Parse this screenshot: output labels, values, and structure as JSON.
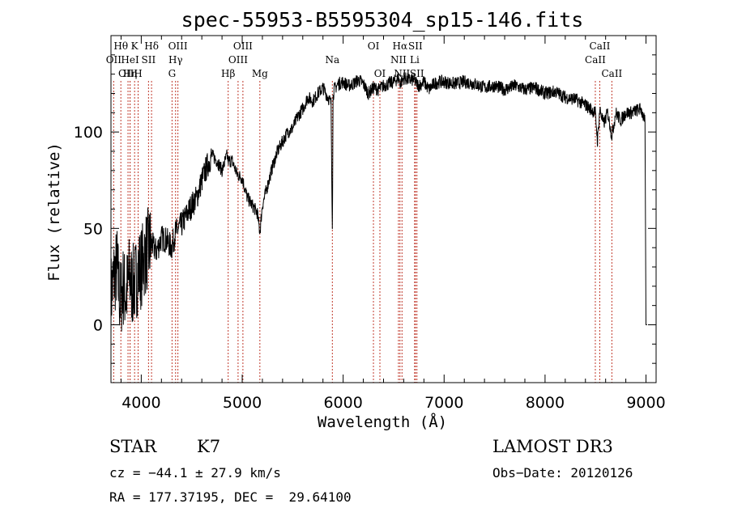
{
  "chart_data": {
    "type": "line",
    "title": "spec-55953-B5595304_sp15-146.fits",
    "xlabel": "Wavelength (Å)",
    "ylabel": "Flux (relative)",
    "xlim": [
      3700,
      9100
    ],
    "ylim": [
      -30,
      150
    ],
    "xticks": [
      {
        "value": 4000,
        "label": "4000"
      },
      {
        "value": 5000,
        "label": "5000"
      },
      {
        "value": 6000,
        "label": "6000"
      },
      {
        "value": 7000,
        "label": "7000"
      },
      {
        "value": 8000,
        "label": "8000"
      },
      {
        "value": 9000,
        "label": "9000"
      }
    ],
    "yticks": [
      {
        "value": 0,
        "label": "0"
      },
      {
        "value": 50,
        "label": "50"
      },
      {
        "value": 100,
        "label": "100"
      }
    ],
    "series": [
      {
        "name": "flux",
        "x": [
          3700,
          3730,
          3760,
          3790,
          3820,
          3850,
          3880,
          3910,
          3940,
          3970,
          4000,
          4050,
          4100,
          4150,
          4200,
          4250,
          4300,
          4340,
          4400,
          4450,
          4500,
          4550,
          4600,
          4650,
          4700,
          4750,
          4800,
          4850,
          4861,
          4900,
          4950,
          5000,
          5050,
          5100,
          5150,
          5175,
          5200,
          5250,
          5300,
          5350,
          5400,
          5450,
          5500,
          5550,
          5600,
          5650,
          5700,
          5750,
          5800,
          5850,
          5880,
          5893,
          5900,
          5910,
          5950,
          6000,
          6050,
          6100,
          6150,
          6200,
          6250,
          6300,
          6350,
          6400,
          6450,
          6500,
          6550,
          6563,
          6600,
          6650,
          6700,
          6750,
          6800,
          6850,
          6900,
          6950,
          7000,
          7100,
          7200,
          7300,
          7400,
          7500,
          7600,
          7700,
          7800,
          7900,
          8000,
          8100,
          8200,
          8300,
          8400,
          8450,
          8498,
          8520,
          8542,
          8580,
          8620,
          8662,
          8700,
          8750,
          8800,
          8850,
          8900,
          8950,
          8990,
          9000,
          9010
        ],
        "y": [
          15,
          25,
          30,
          12,
          20,
          15,
          25,
          20,
          22,
          28,
          30,
          38,
          42,
          38,
          45,
          44,
          40,
          48,
          52,
          57,
          62,
          66,
          75,
          82,
          88,
          85,
          80,
          88,
          85,
          85,
          78,
          76,
          66,
          62,
          58,
          48,
          62,
          72,
          82,
          90,
          95,
          100,
          102,
          108,
          112,
          118,
          116,
          120,
          123,
          118,
          115,
          50,
          118,
          122,
          125,
          126,
          124,
          125,
          127,
          125,
          120,
          123,
          122,
          124,
          125,
          126,
          128,
          125,
          128,
          127,
          127,
          124,
          126,
          122,
          125,
          126,
          126,
          125,
          126,
          125,
          123,
          124,
          122,
          124,
          122,
          123,
          120,
          121,
          118,
          117,
          114,
          112,
          110,
          95,
          112,
          104,
          110,
          98,
          110,
          106,
          110,
          110,
          111,
          112,
          105,
          0,
          0
        ]
      }
    ],
    "lines": [
      {
        "name": "OII",
        "wave": 3727,
        "row": 2
      },
      {
        "name": "Hθ",
        "wave": 3798,
        "row": 1
      },
      {
        "name": "OIII",
        "wave": 3869,
        "row": 3
      },
      {
        "name": "HeI",
        "wave": 3889,
        "row": 2
      },
      {
        "name": "Hη",
        "wave": 3889,
        "row": 3
      },
      {
        "name": "K",
        "wave": 3934,
        "row": 1
      },
      {
        "name": "H",
        "wave": 3969,
        "row": 3
      },
      {
        "name": "SII",
        "wave": 4072,
        "row": 2
      },
      {
        "name": "Hδ",
        "wave": 4102,
        "row": 1
      },
      {
        "name": "OIII",
        "wave": 4363,
        "row": 1
      },
      {
        "name": "Hγ",
        "wave": 4340,
        "row": 2
      },
      {
        "name": "G",
        "wave": 4305,
        "row": 3
      },
      {
        "name": "Hβ",
        "wave": 4861,
        "row": 3
      },
      {
        "name": "OIII",
        "wave": 4959,
        "row": 2
      },
      {
        "name": "OIII",
        "wave": 5007,
        "row": 1
      },
      {
        "name": "Mg",
        "wave": 5175,
        "row": 3
      },
      {
        "name": "Na",
        "wave": 5893,
        "row": 2
      },
      {
        "name": "OI",
        "wave": 6300,
        "row": 1
      },
      {
        "name": "OI",
        "wave": 6364,
        "row": 3
      },
      {
        "name": "NII",
        "wave": 6548,
        "row": 2
      },
      {
        "name": "Hα",
        "wave": 6563,
        "row": 1
      },
      {
        "name": "NII",
        "wave": 6583,
        "row": 3
      },
      {
        "name": "SII",
        "wave": 6716,
        "row": 1
      },
      {
        "name": "Li",
        "wave": 6708,
        "row": 2
      },
      {
        "name": "SII",
        "wave": 6731,
        "row": 3
      },
      {
        "name": "CaII",
        "wave": 8542,
        "row": 1
      },
      {
        "name": "CaII",
        "wave": 8498,
        "row": 2
      },
      {
        "name": "CaII",
        "wave": 8662,
        "row": 3
      }
    ]
  },
  "info": {
    "class": "STAR",
    "subclass": "K7",
    "survey": "LAMOST DR3",
    "cz": "cz = −44.1 ± 27.9 km/s",
    "obsdate": "Obs−Date: 20120126",
    "radec": "RA = 177.37195, DEC =  29.64100"
  },
  "colors": {
    "line_marker": "#c0392b",
    "spectrum": "#000000"
  }
}
